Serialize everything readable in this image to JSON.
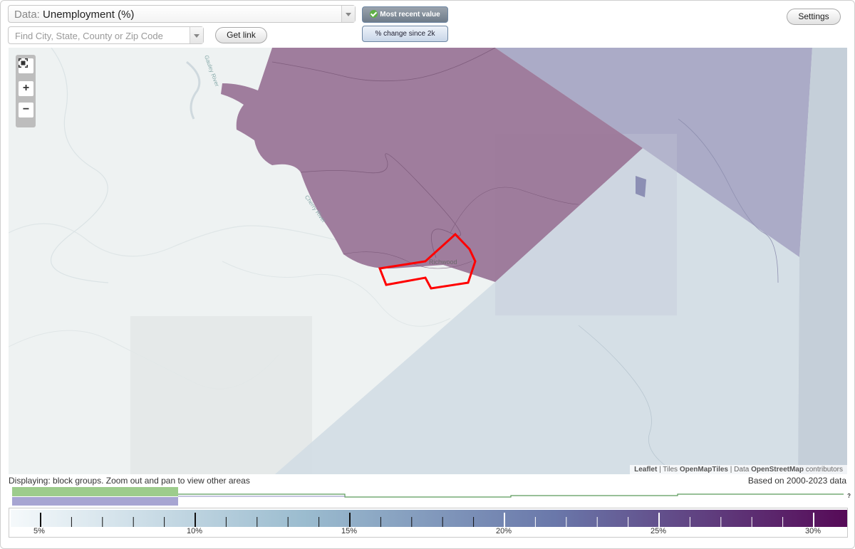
{
  "header": {
    "data_prefix": "Data:",
    "data_value": "Unemployment (%)",
    "search_placeholder": "Find City, State, County or Zip Code",
    "get_link": "Get link",
    "settings": "Settings",
    "toggle_recent": "Most recent value",
    "toggle_change": "% change since 2k"
  },
  "map": {
    "place_label": "Richwood",
    "river_labels": [
      "Gauley River",
      "Cherry River"
    ],
    "zoom_in": "+",
    "zoom_out": "−",
    "attribution": {
      "leaflet": "Leaflet",
      "sep1": " | Tiles ",
      "tiles": "OpenMapTiles",
      "sep2": " | Data ",
      "data": "OpenStreetMap",
      "contributors": " contributors"
    },
    "colors": {
      "dark_region": "#9a7698",
      "mid_region": "#a7a6c4",
      "light_region": "#d2dde4",
      "highlight_outline": "#ff0000"
    }
  },
  "footer": {
    "status": "Displaying: block groups. Zoom out and pan to view other areas",
    "based_on": "Based on 2000-2023 data",
    "histogram_help": "?"
  },
  "legend": {
    "ticks": [
      "5%",
      "10%",
      "15%",
      "20%",
      "25%",
      "30%"
    ],
    "gradient_start": "#f5f9fb",
    "gradient_mid": "#9bbccf",
    "gradient_mid2": "#6a78aa",
    "gradient_end": "#560a57"
  }
}
